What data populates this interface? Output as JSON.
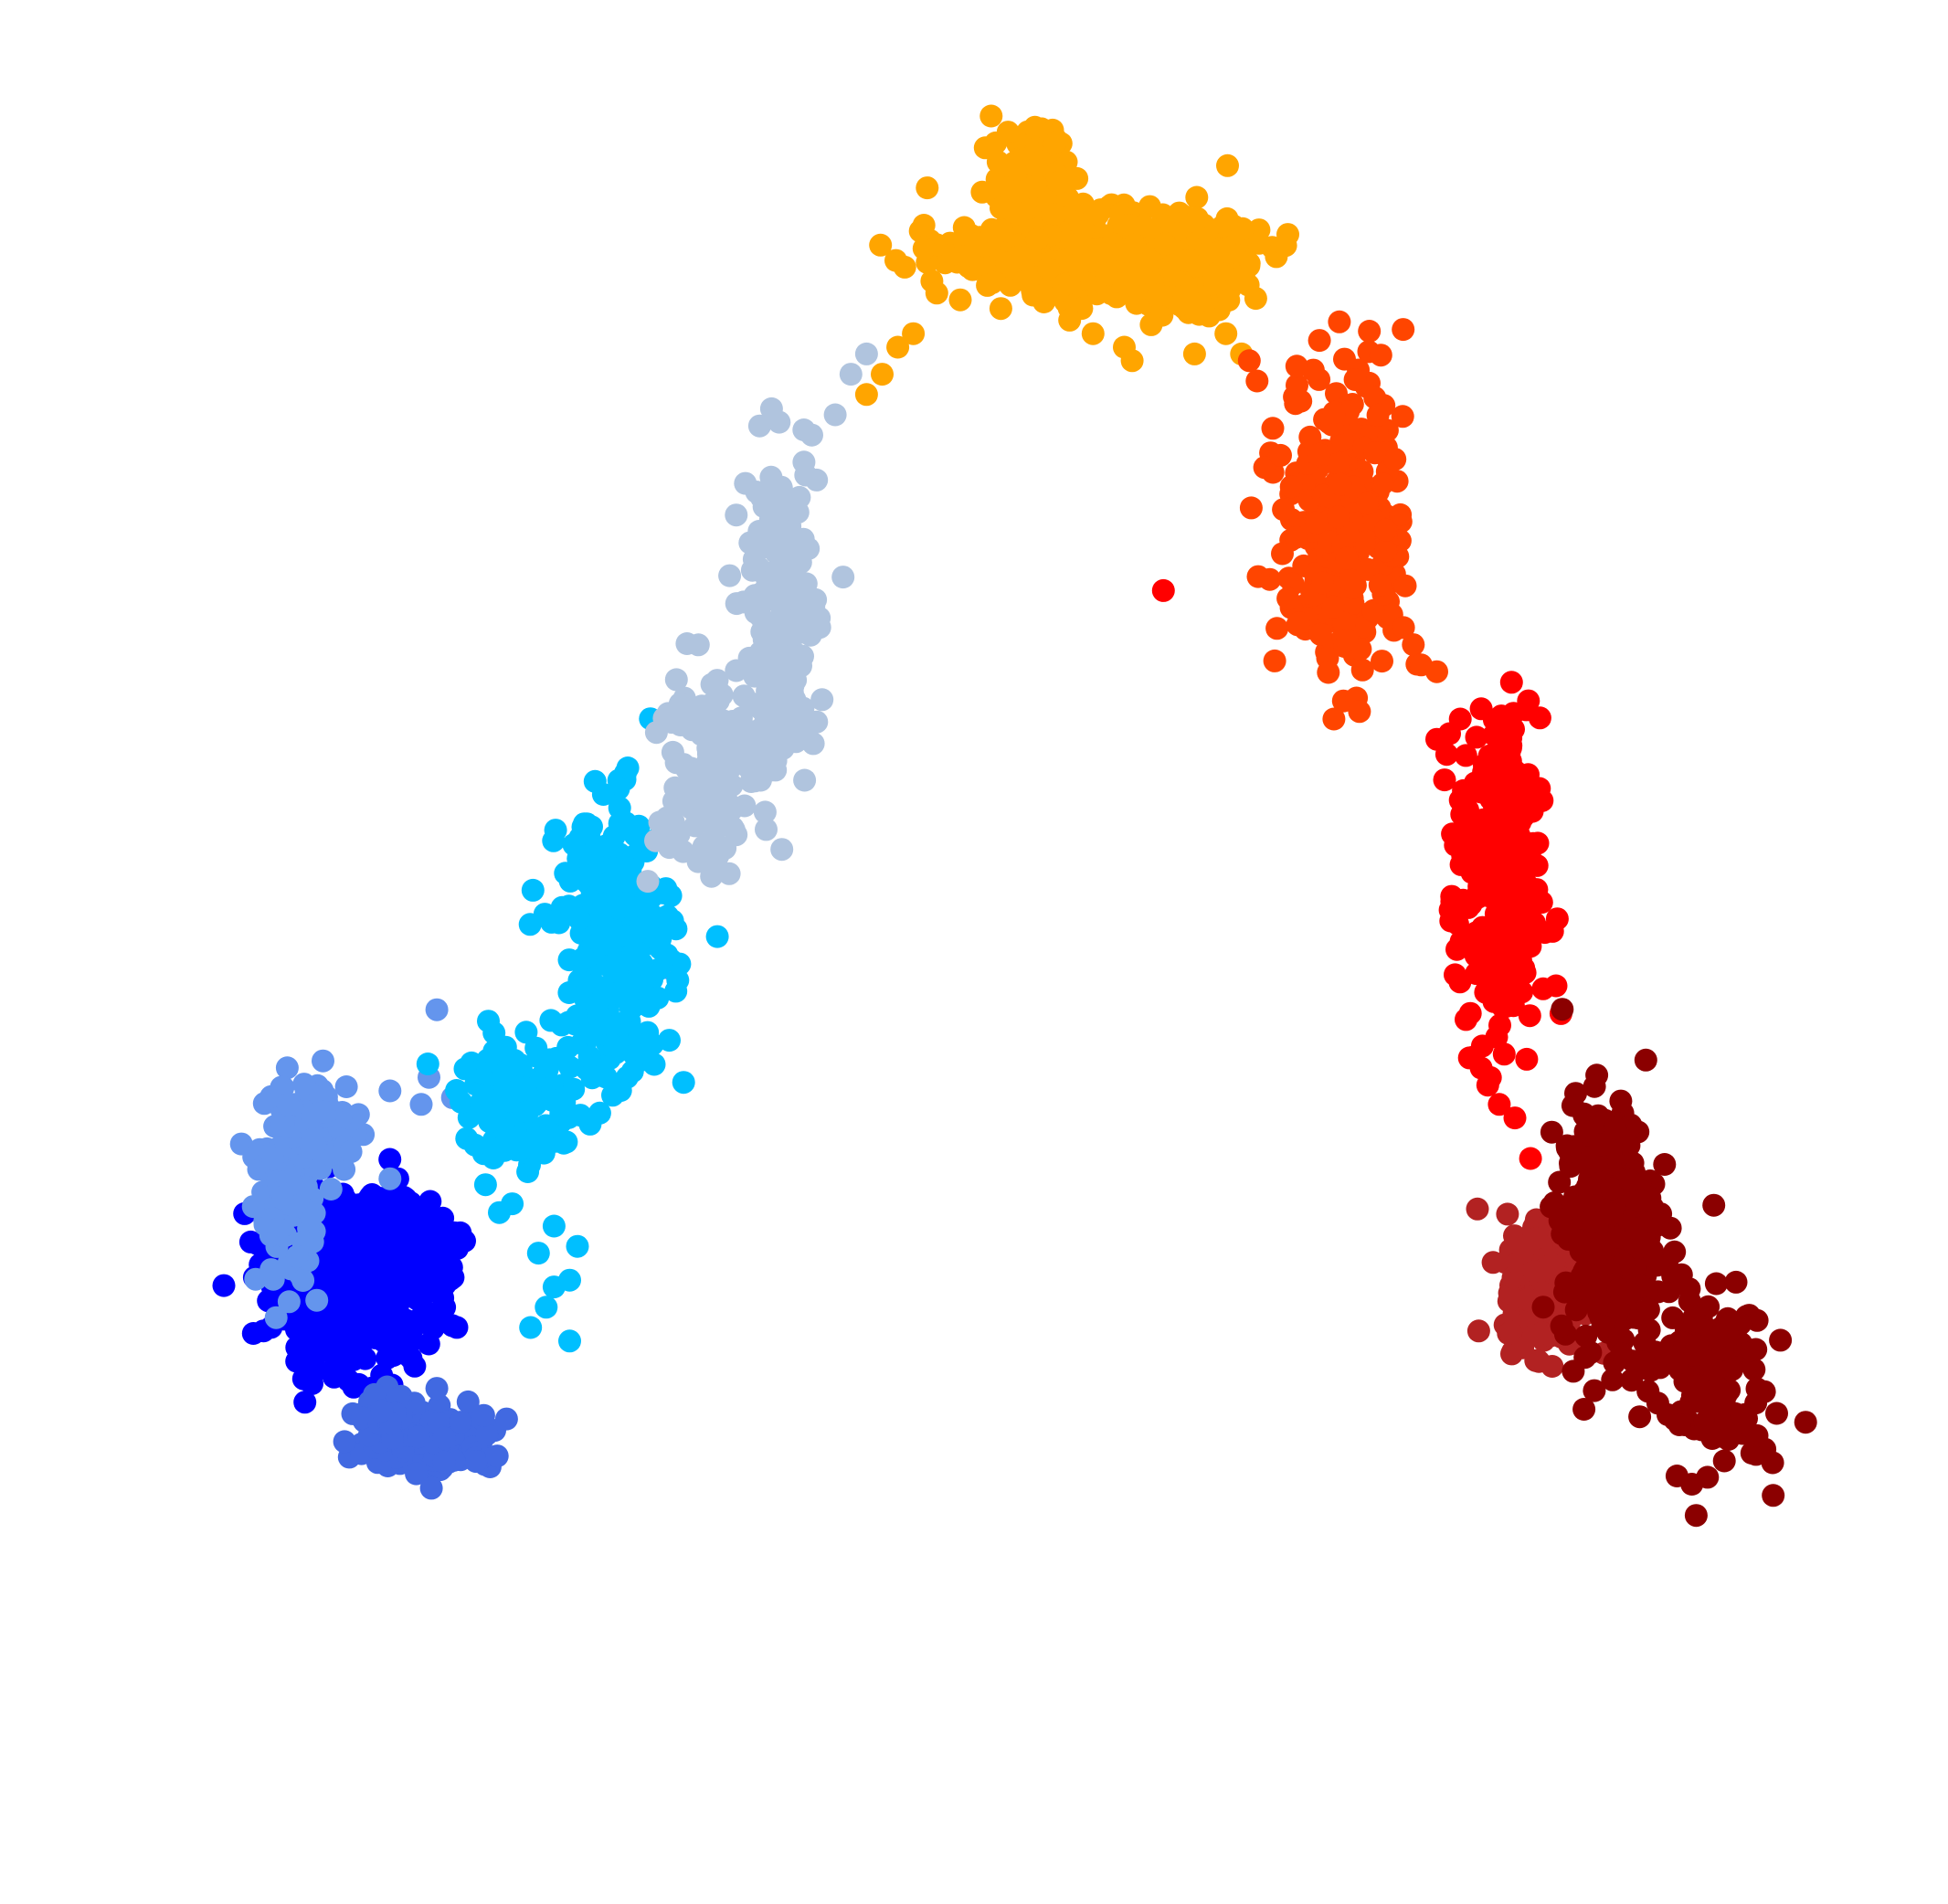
{
  "chart_data": {
    "type": "scatter",
    "title": "",
    "xlabel": "",
    "ylabel": "",
    "axes_visible": false,
    "grid": false,
    "legend": "none",
    "xlim": [
      0,
      100
    ],
    "ylim": [
      0,
      100
    ],
    "series": [
      {
        "color": "#0000ff",
        "clusters": [
          {
            "cx": 5.5,
            "cy": 31.0,
            "sx": 2.5,
            "sy": 3.0,
            "n": 700
          },
          {
            "cx": 8.5,
            "cy": 33.5,
            "sx": 1.8,
            "sy": 1.2,
            "n": 140
          }
        ],
        "points": [
          [
            8.5,
            38.5
          ],
          [
            11.5,
            29.0
          ],
          [
            11.8,
            31.0
          ],
          [
            9.5,
            27.5
          ],
          [
            12.0,
            33.5
          ],
          [
            12.5,
            34.5
          ],
          [
            5.0,
            36.0
          ],
          [
            7.0,
            36.5
          ]
        ]
      },
      {
        "color": "#4169e1",
        "clusters": [
          {
            "cx": 10.5,
            "cy": 19.0,
            "sx": 2.0,
            "sy": 1.0,
            "n": 200
          },
          {
            "cx": 8.0,
            "cy": 21.0,
            "sx": 1.0,
            "sy": 0.8,
            "n": 50
          }
        ],
        "points": [
          [
            13.0,
            22.0
          ],
          [
            14.0,
            21.0
          ],
          [
            11.0,
            23.0
          ],
          [
            12.5,
            20.5
          ]
        ]
      },
      {
        "color": "#6495ed",
        "clusters": [
          {
            "cx": 1.5,
            "cy": 38.0,
            "sx": 1.0,
            "sy": 3.5,
            "n": 150
          },
          {
            "cx": 4.0,
            "cy": 43.0,
            "sx": 1.0,
            "sy": 1.5,
            "n": 40
          }
        ],
        "points": [
          [
            8.0,
            45.0
          ],
          [
            10.5,
            46.0
          ],
          [
            12.0,
            44.5
          ],
          [
            10.0,
            44.0
          ],
          [
            26.0,
            54.0
          ],
          [
            11.0,
            51.0
          ],
          [
            8.0,
            38.5
          ],
          [
            5.5,
            40.5
          ],
          [
            2.5,
            45.5
          ]
        ]
      },
      {
        "color": "#00bfff",
        "clusters": [
          {
            "cx": 22.5,
            "cy": 56.0,
            "sx": 1.8,
            "sy": 5.0,
            "n": 320
          },
          {
            "cx": 16.5,
            "cy": 44.0,
            "sx": 2.0,
            "sy": 2.5,
            "n": 120
          }
        ],
        "points": [
          [
            18.0,
            29.0
          ],
          [
            18.5,
            30.5
          ],
          [
            19.5,
            31.0
          ],
          [
            17.5,
            33.0
          ],
          [
            18.5,
            35.0
          ],
          [
            20.0,
            33.5
          ],
          [
            19.5,
            26.5
          ],
          [
            17.0,
            27.5
          ],
          [
            16.5,
            41.0
          ],
          [
            15.0,
            36.0
          ],
          [
            17.5,
            47.5
          ],
          [
            21.5,
            58.0
          ]
        ]
      },
      {
        "color": "#b0c4de",
        "clusters": [
          {
            "cx": 33.0,
            "cy": 80.0,
            "sx": 1.2,
            "sy": 6.0,
            "n": 200
          },
          {
            "cx": 28.0,
            "cy": 69.0,
            "sx": 1.5,
            "sy": 4.0,
            "n": 150
          }
        ],
        "points": [
          [
            31.0,
            77.0
          ],
          [
            34.5,
            91.5
          ],
          [
            35.0,
            93.5
          ],
          [
            36.5,
            95.0
          ],
          [
            37.5,
            98.0
          ],
          [
            38.5,
            99.5
          ],
          [
            37.0,
            83.0
          ],
          [
            26.5,
            64.0
          ],
          [
            24.5,
            60.5
          ],
          [
            25.0,
            63.5
          ]
        ]
      },
      {
        "color": "#ffa500",
        "clusters": [
          {
            "cx": 53.0,
            "cy": 107.0,
            "sx": 4.5,
            "sy": 1.5,
            "n": 520
          },
          {
            "cx": 49.0,
            "cy": 112.5,
            "sx": 1.2,
            "sy": 2.0,
            "n": 80
          },
          {
            "cx": 58.5,
            "cy": 105.5,
            "sx": 2.0,
            "sy": 1.5,
            "n": 140
          }
        ],
        "points": [
          [
            38.5,
            96.5
          ],
          [
            39.5,
            98.0
          ],
          [
            40.5,
            100.0
          ],
          [
            41.5,
            101.0
          ],
          [
            43.0,
            104.0
          ],
          [
            44.5,
            103.5
          ],
          [
            51.5,
            102.0
          ],
          [
            53.0,
            101.0
          ],
          [
            55.0,
            100.0
          ],
          [
            55.5,
            99.0
          ],
          [
            59.5,
            99.5
          ],
          [
            61.5,
            101.0
          ],
          [
            62.5,
            99.5
          ]
        ]
      },
      {
        "color": "#ff4500",
        "clusters": [
          {
            "cx": 69.0,
            "cy": 87.0,
            "sx": 2.0,
            "sy": 6.0,
            "n": 280
          }
        ],
        "points": [
          [
            63.0,
            99.0
          ],
          [
            63.5,
            97.5
          ],
          [
            64.5,
            94.0
          ],
          [
            65.0,
            92.0
          ],
          [
            73.5,
            78.0
          ],
          [
            74.0,
            76.5
          ],
          [
            75.0,
            76.0
          ]
        ]
      },
      {
        "color": "#ff0000",
        "clusters": [
          {
            "cx": 79.0,
            "cy": 59.5,
            "sx": 1.3,
            "sy": 6.5,
            "n": 280
          }
        ],
        "points": [
          [
            57.5,
            82.0
          ],
          [
            75.5,
            68.0
          ],
          [
            76.5,
            66.5
          ],
          [
            76.5,
            72.5
          ],
          [
            75.0,
            71.0
          ],
          [
            76.0,
            64.0
          ],
          [
            77.5,
            55.0
          ],
          [
            79.0,
            44.0
          ],
          [
            80.0,
            43.0
          ],
          [
            81.0,
            40.0
          ]
        ]
      },
      {
        "color": "#b22222",
        "clusters": [
          {
            "cx": 82.0,
            "cy": 31.0,
            "sx": 1.3,
            "sy": 2.5,
            "n": 200
          }
        ],
        "points": [
          [
            80.5,
            26.0
          ],
          [
            84.5,
            28.5
          ],
          [
            83.0,
            35.0
          ]
        ]
      },
      {
        "color": "#8b0000",
        "clusters": [
          {
            "cx": 86.0,
            "cy": 35.0,
            "sx": 1.5,
            "sy": 4.5,
            "n": 350
          },
          {
            "cx": 92.0,
            "cy": 24.0,
            "sx": 2.0,
            "sy": 3.5,
            "n": 150
          }
        ],
        "points": [
          [
            96.5,
            17.5
          ],
          [
            96.0,
            18.5
          ],
          [
            95.5,
            19.5
          ],
          [
            94.5,
            21.0
          ],
          [
            83.5,
            40.5
          ],
          [
            84.5,
            42.0
          ],
          [
            85.5,
            41.0
          ]
        ]
      }
    ]
  }
}
